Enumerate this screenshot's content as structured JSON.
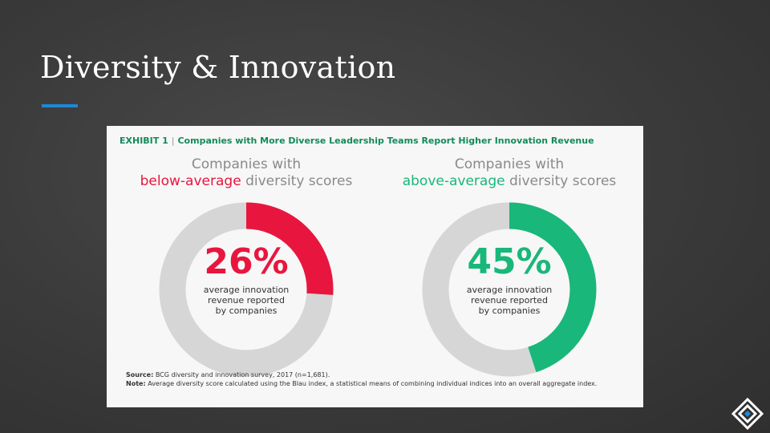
{
  "slide": {
    "title": "Diversity & Innovation",
    "accent_color": "#1e88d6"
  },
  "exhibit": {
    "label": "Exhibit 1",
    "title": "Companies with More Diverse Leadership Teams Report Higher Innovation Revenue",
    "source_label": "Source:",
    "source_text": "BCG diversity and innovation survey, 2017 (n=1,681).",
    "note_label": "Note:",
    "note_text": "Average diversity score calculated using the Blau index, a statistical means of combining individual indices into an overall aggregate index."
  },
  "chart_data": [
    {
      "type": "pie",
      "heading_line1": "Companies with",
      "heading_highlight": "below-average",
      "heading_rest": "diversity scores",
      "value": 26,
      "value_label": "26%",
      "description": [
        "average innovation",
        "revenue reported",
        "by companies"
      ],
      "color": "#e8163e",
      "track_color": "#d6d6d6"
    },
    {
      "type": "pie",
      "heading_line1": "Companies with",
      "heading_highlight": "above-average",
      "heading_rest": "diversity scores",
      "value": 45,
      "value_label": "45%",
      "description": [
        "average innovation",
        "revenue reported",
        "by companies"
      ],
      "color": "#19b77a",
      "track_color": "#d6d6d6"
    }
  ],
  "logo": {
    "icon": "diamond-logo-icon"
  }
}
